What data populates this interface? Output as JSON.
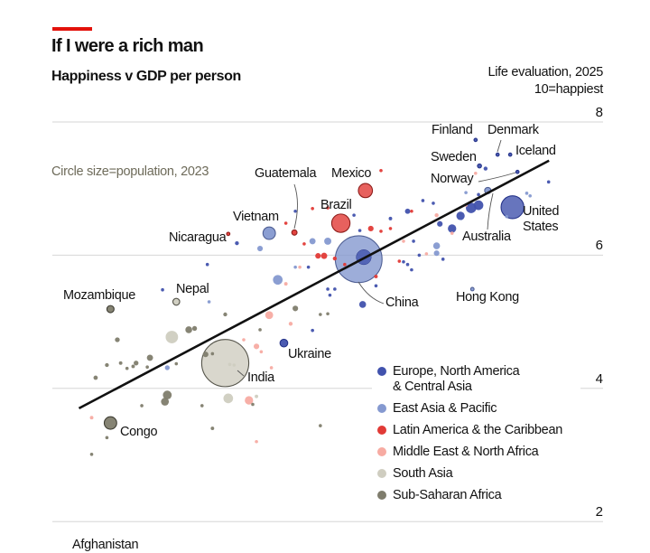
{
  "header": {
    "title": "If I were a rich man",
    "subtitle": "Happiness v GDP per person",
    "y_label_line1": "Life evaluation, 2025",
    "y_label_line2": "10=happiest",
    "size_note": "Circle size=population, 2023",
    "accent_color": "#e3120b"
  },
  "chart_data": {
    "type": "scatter",
    "title": "Happiness v GDP per person",
    "ylabel": "Life evaluation, 2025 (10=happiest)",
    "xlabel": "",
    "x_quantity": "GDP per person, $'000 (approximate, log scale, axis not shown)",
    "x_scale": "log",
    "ylim": [
      2,
      8
    ],
    "yticks": [
      "8",
      "6",
      "4",
      "2"
    ],
    "grid": true,
    "legend_position": "bottom-right",
    "regions": {
      "E": {
        "name": "Europe, North America",
        "name2": "& Central Asia",
        "color": "#4152ad"
      },
      "A": {
        "name": "East Asia & Pacific",
        "color": "#8599d0"
      },
      "L": {
        "name": "Latin America & the Caribbean",
        "color": "#e13a36"
      },
      "M": {
        "name": "Middle East & North Africa",
        "color": "#f7aba2"
      },
      "S": {
        "name": "South Asia",
        "color": "#cfcdc0"
      },
      "F": {
        "name": "Sub-Saharan Africa",
        "color": "#7f7d6d"
      }
    },
    "point_fields": [
      "gdp_per_person_k",
      "life_evaluation",
      "population_m",
      "region"
    ],
    "labelled_points": [
      {
        "label": "Finland",
        "v": [
          55.8,
          7.73,
          5.6,
          "E"
        ]
      },
      {
        "label": "Denmark",
        "v": [
          65.5,
          7.51,
          6,
          "E"
        ]
      },
      {
        "label": "Iceland",
        "v": [
          71.8,
          7.51,
          0.4,
          "E"
        ]
      },
      {
        "label": "Sweden",
        "v": [
          57.4,
          7.34,
          10.5,
          "E"
        ]
      },
      {
        "label": "Norway",
        "v": [
          75.7,
          7.25,
          5.5,
          "E"
        ]
      },
      {
        "label": "Australia",
        "v": [
          61,
          6.97,
          26,
          "A"
        ]
      },
      {
        "label": "United States",
        "v": [
          73,
          6.72,
          335,
          "E"
        ]
      },
      {
        "label": "Hong Kong",
        "v": [
          54.5,
          5.49,
          7.5,
          "A"
        ]
      },
      {
        "label": "China",
        "v": [
          23.8,
          5.94,
          1410,
          "A"
        ]
      },
      {
        "label": "Mexico",
        "v": [
          25,
          6.97,
          128,
          "L"
        ]
      },
      {
        "label": "Brazil",
        "v": [
          20.9,
          6.48,
          216,
          "L"
        ]
      },
      {
        "label": "Guatemala",
        "v": [
          14.9,
          6.34,
          18,
          "L"
        ]
      },
      {
        "label": "Vietnam",
        "v": [
          12.4,
          6.33,
          100,
          "A"
        ]
      },
      {
        "label": "Nicaragua",
        "v": [
          9.2,
          6.32,
          7,
          "L"
        ]
      },
      {
        "label": "Nepal",
        "v": [
          6.3,
          5.3,
          30,
          "S"
        ]
      },
      {
        "label": "Mozambique",
        "v": [
          3.9,
          5.19,
          33,
          "F"
        ]
      },
      {
        "label": "Ukraine",
        "v": [
          13.8,
          4.68,
          38,
          "E"
        ]
      },
      {
        "label": "India",
        "v": [
          9.0,
          4.38,
          1430,
          "S"
        ]
      },
      {
        "label": "Congo",
        "v": [
          3.9,
          3.48,
          100,
          "F"
        ]
      },
      {
        "label": "Afghanistan",
        "v": null
      }
    ],
    "points": [
      [
        24.7,
        5.97,
        144,
        "E"
      ],
      [
        9.3,
        4.36,
        4,
        "S"
      ],
      [
        9.6,
        4.35,
        3,
        "S"
      ],
      [
        28,
        7.27,
        1,
        "L"
      ],
      [
        55.8,
        7.23,
        3,
        "M"
      ],
      [
        60,
        7.3,
        10,
        "E"
      ],
      [
        52,
        6.94,
        2,
        "A"
      ],
      [
        57,
        6.91,
        5,
        "E"
      ],
      [
        57,
        6.75,
        60,
        "E"
      ],
      [
        54,
        6.71,
        70,
        "E"
      ],
      [
        52,
        6.75,
        1,
        "M"
      ],
      [
        50,
        6.59,
        45,
        "E"
      ],
      [
        47,
        6.4,
        45,
        "E"
      ],
      [
        43,
        6.47,
        20,
        "E"
      ],
      [
        42,
        6.6,
        10,
        "M"
      ],
      [
        41,
        6.78,
        3,
        "E"
      ],
      [
        38,
        6.82,
        2,
        "E"
      ],
      [
        34,
        6.66,
        18,
        "E"
      ],
      [
        35,
        6.66,
        1,
        "L"
      ],
      [
        30,
        6.55,
        8,
        "E"
      ],
      [
        23,
        6.6,
        2,
        "E"
      ],
      [
        26,
        6.4,
        20,
        "L"
      ],
      [
        24,
        6.37,
        5,
        "E"
      ],
      [
        28,
        6.36,
        5,
        "L"
      ],
      [
        30,
        6.4,
        2,
        "L"
      ],
      [
        19,
        6.21,
        33,
        "A"
      ],
      [
        18.5,
        5.99,
        25,
        "L"
      ],
      [
        20,
        5.95,
        10,
        "L"
      ],
      [
        27,
        5.68,
        8,
        "L"
      ],
      [
        21.5,
        5.86,
        2,
        "L"
      ],
      [
        27,
        5.54,
        3,
        "E"
      ],
      [
        24.5,
        5.26,
        30,
        "E"
      ],
      [
        42,
        6.14,
        30,
        "A"
      ],
      [
        42,
        6.03,
        20,
        "A"
      ],
      [
        37,
        6.0,
        3,
        "E"
      ],
      [
        44,
        5.94,
        1,
        "E"
      ],
      [
        33,
        5.9,
        5,
        "E"
      ],
      [
        34,
        5.86,
        3,
        "E"
      ],
      [
        35,
        5.78,
        3,
        "E"
      ],
      [
        32,
        5.91,
        1,
        "L"
      ],
      [
        39,
        6.02,
        1,
        "M"
      ],
      [
        35.5,
        6.21,
        2,
        "E"
      ],
      [
        33,
        6.21,
        2,
        "M"
      ],
      [
        47,
        6.33,
        1,
        "M"
      ],
      [
        81,
        6.93,
        5,
        "A"
      ],
      [
        83,
        6.89,
        2,
        "A"
      ],
      [
        70,
        6.58,
        1,
        "A"
      ],
      [
        95,
        7.1,
        1,
        "E"
      ],
      [
        19,
        5.49,
        2,
        "E"
      ],
      [
        20,
        5.49,
        2,
        "E"
      ],
      [
        19.3,
        5.4,
        2,
        "E"
      ],
      [
        19,
        5.12,
        1,
        "F"
      ],
      [
        19,
        6.71,
        1,
        "L"
      ],
      [
        15,
        6.66,
        1,
        "E"
      ],
      [
        17,
        6.7,
        1,
        "L"
      ],
      [
        14,
        6.48,
        2,
        "L"
      ],
      [
        9.8,
        6.18,
        10,
        "E"
      ],
      [
        11.6,
        6.1,
        20,
        "A"
      ],
      [
        17,
        6.21,
        25,
        "A"
      ],
      [
        16,
        6.17,
        3,
        "L"
      ],
      [
        17.7,
        5.99,
        20,
        "L"
      ],
      [
        7.9,
        5.86,
        1,
        "E"
      ],
      [
        13.2,
        5.63,
        60,
        "A"
      ],
      [
        14,
        5.57,
        8,
        "M"
      ],
      [
        15,
        5.82,
        1,
        "A"
      ],
      [
        15.5,
        5.82,
        2,
        "M"
      ],
      [
        16.5,
        5.82,
        1,
        "E"
      ],
      [
        5.7,
        5.48,
        2,
        "E"
      ],
      [
        8,
        5.3,
        1,
        "A"
      ],
      [
        9,
        5.11,
        10,
        "F"
      ],
      [
        15,
        5.2,
        20,
        "F"
      ],
      [
        12.4,
        5.1,
        40,
        "M"
      ],
      [
        14.5,
        4.97,
        10,
        "M"
      ],
      [
        11.6,
        4.88,
        1,
        "F"
      ],
      [
        17,
        4.87,
        2,
        "E"
      ],
      [
        18,
        5.11,
        1,
        "F"
      ],
      [
        6.9,
        4.88,
        30,
        "F"
      ],
      [
        7.2,
        4.9,
        15,
        "F"
      ],
      [
        6.1,
        4.77,
        100,
        "S"
      ],
      [
        4.1,
        4.73,
        15,
        "F"
      ],
      [
        3.8,
        4.35,
        10,
        "F"
      ],
      [
        4.2,
        4.38,
        8,
        "F"
      ],
      [
        4.4,
        4.3,
        3,
        "F"
      ],
      [
        4.7,
        4.38,
        15,
        "F"
      ],
      [
        4.6,
        4.33,
        8,
        "F"
      ],
      [
        5.2,
        4.46,
        25,
        "F"
      ],
      [
        5.1,
        4.32,
        3,
        "F"
      ],
      [
        3.5,
        4.16,
        12,
        "F"
      ],
      [
        5.9,
        4.31,
        15,
        "A"
      ],
      [
        6.3,
        4.37,
        5,
        "F"
      ],
      [
        7.8,
        4.51,
        20,
        "F"
      ],
      [
        8.2,
        4.52,
        3,
        "F"
      ],
      [
        10.3,
        4.73,
        2,
        "M"
      ],
      [
        11.3,
        4.63,
        20,
        "M"
      ],
      [
        11.7,
        4.55,
        4,
        "M"
      ],
      [
        12.6,
        4.31,
        3,
        "M"
      ],
      [
        5.9,
        3.9,
        50,
        "F"
      ],
      [
        5.8,
        3.8,
        40,
        "F"
      ],
      [
        9.2,
        3.85,
        60,
        "S"
      ],
      [
        10.7,
        3.82,
        45,
        "M"
      ],
      [
        11.3,
        3.88,
        8,
        "S"
      ],
      [
        11,
        3.76,
        1,
        "F"
      ],
      [
        4.9,
        3.74,
        1,
        "F"
      ],
      [
        7.6,
        3.74,
        1,
        "F"
      ],
      [
        3.4,
        3.56,
        8,
        "M"
      ],
      [
        3.8,
        3.26,
        3,
        "F"
      ],
      [
        8.2,
        3.4,
        8,
        "F"
      ],
      [
        18,
        3.44,
        1,
        "F"
      ],
      [
        11.3,
        3.2,
        2,
        "M"
      ],
      [
        3.4,
        3.01,
        2,
        "F"
      ]
    ],
    "trend_line": {
      "from": [
        3.1,
        3.7
      ],
      "to": [
        95.3,
        7.42
      ]
    }
  }
}
